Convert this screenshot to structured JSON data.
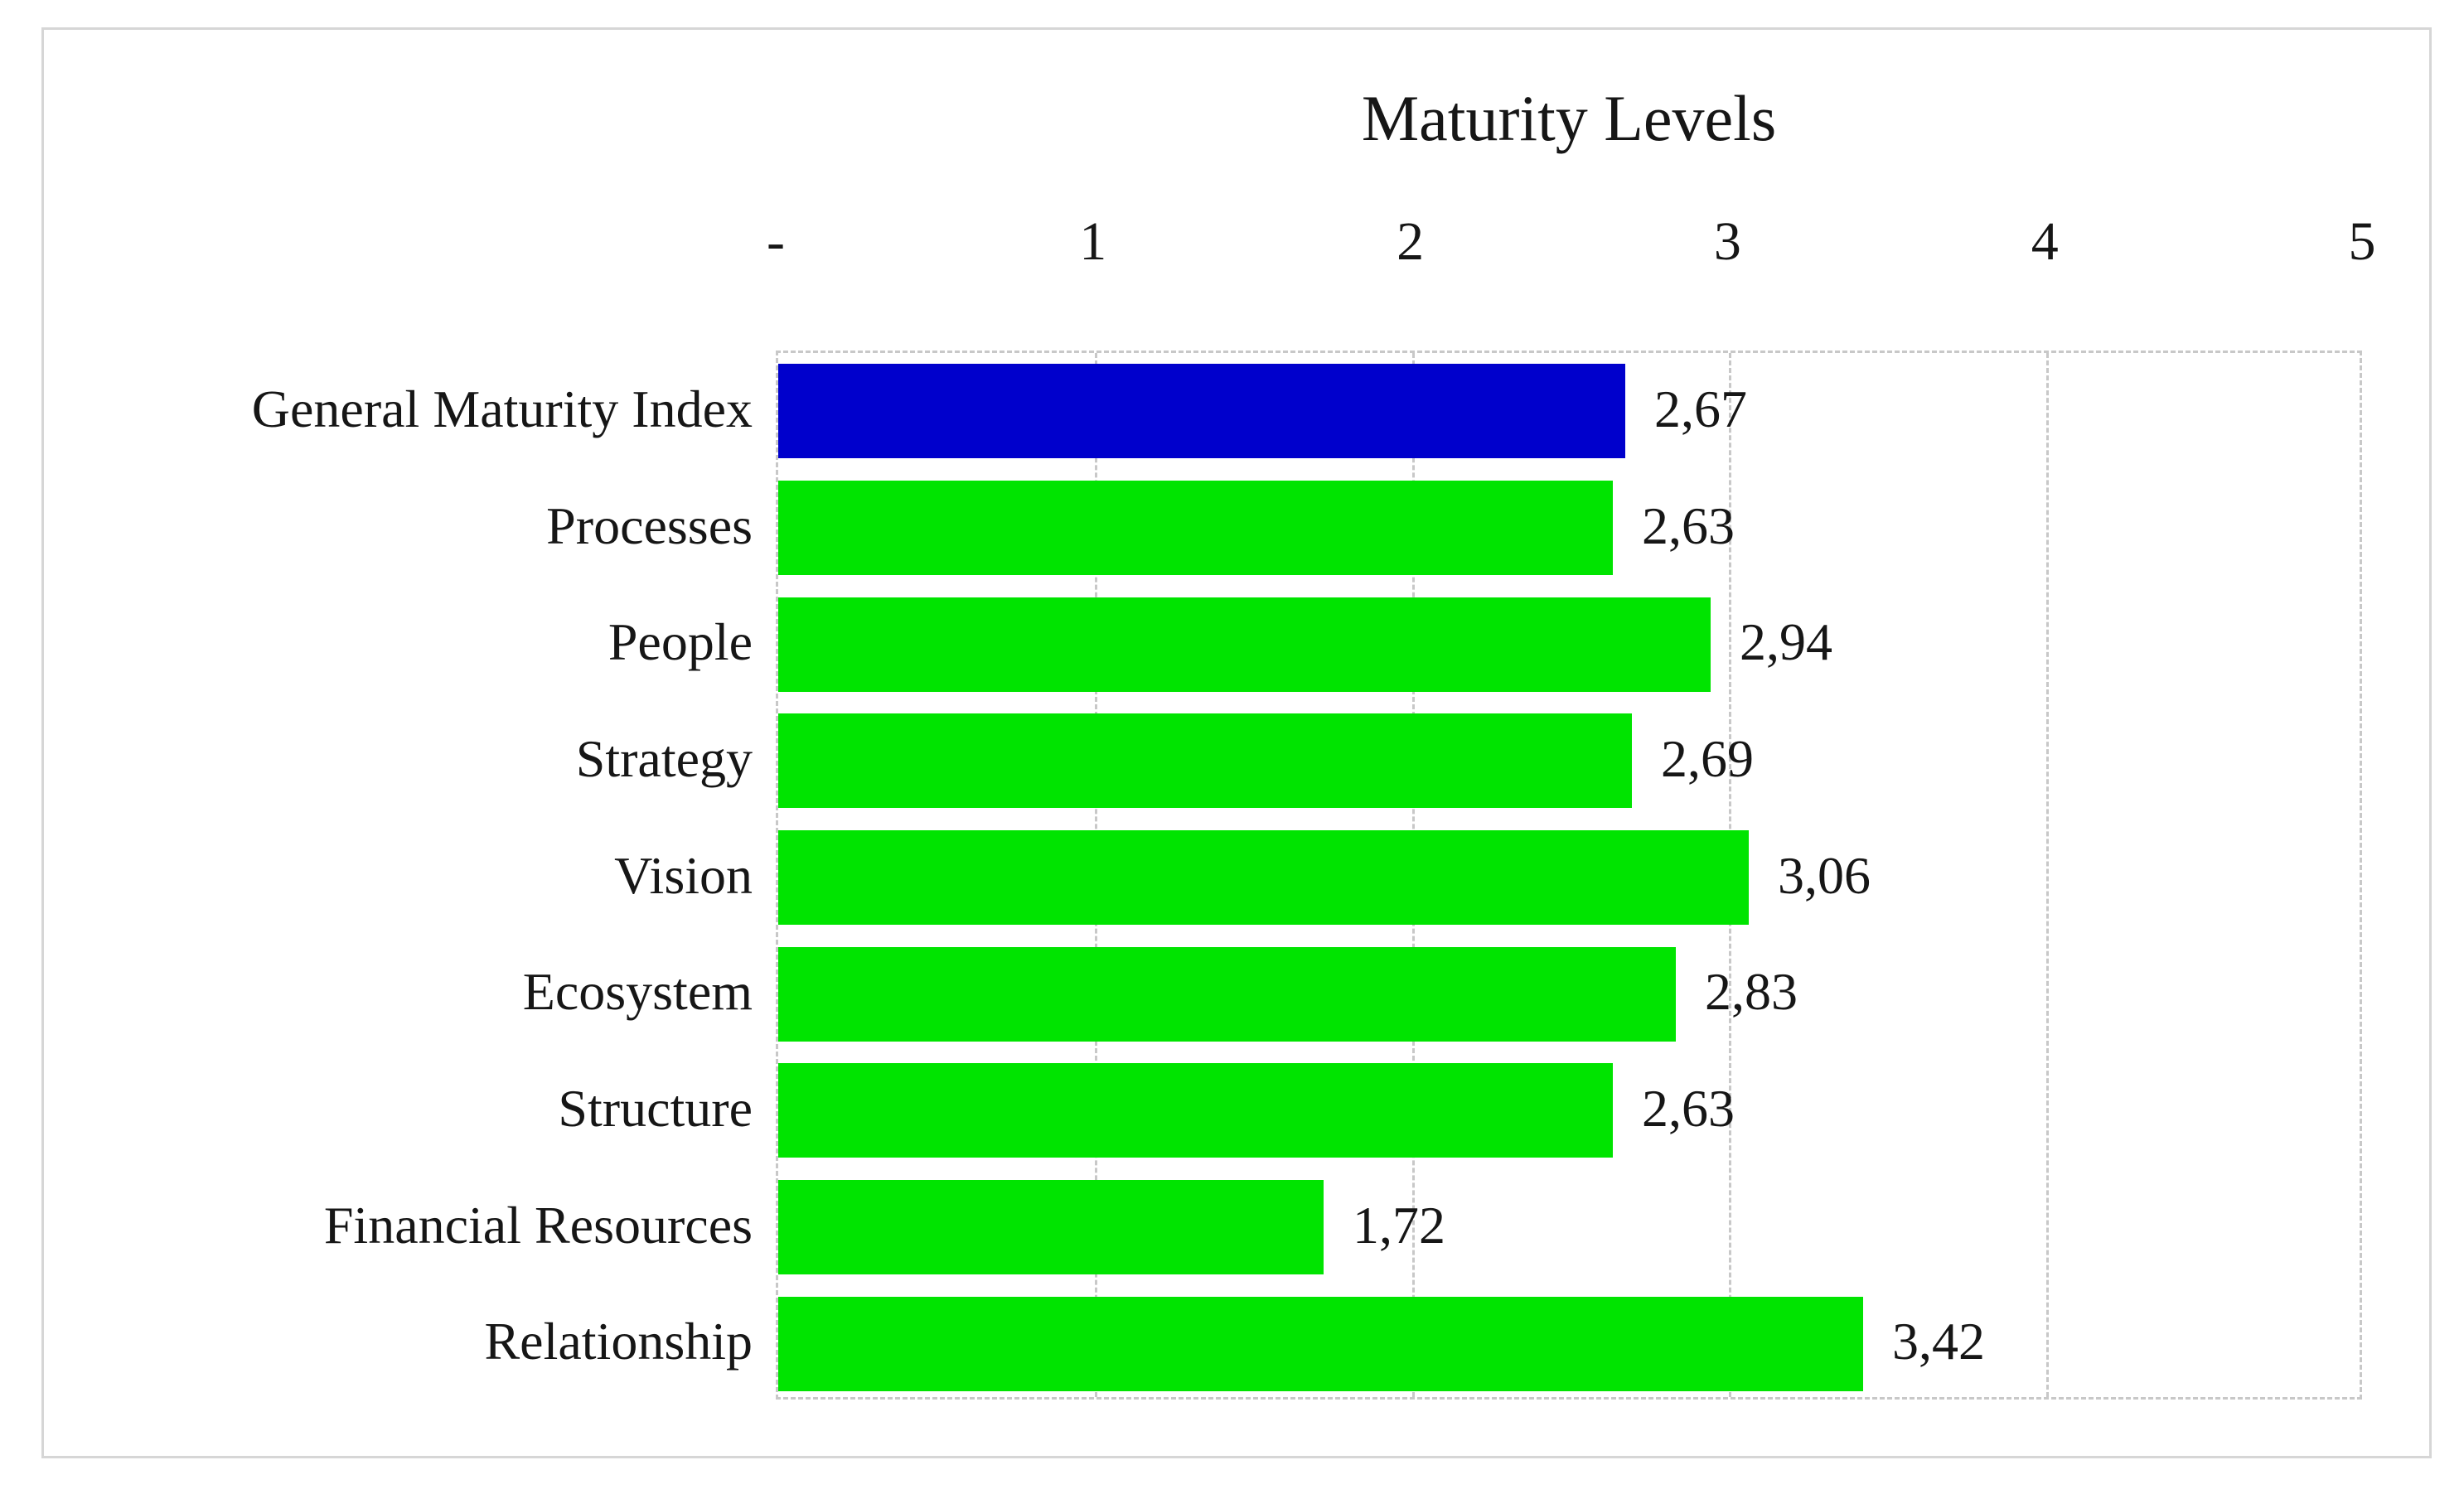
{
  "chart_data": {
    "type": "bar",
    "orientation": "horizontal",
    "title": "Maturity Levels",
    "categories": [
      "General Maturity Index",
      "Processes",
      "People",
      "Strategy",
      "Vision",
      "Ecosystem",
      "Structure",
      "Financial Resources",
      "Relationship"
    ],
    "values": [
      2.67,
      2.63,
      2.94,
      2.69,
      3.06,
      2.83,
      2.63,
      1.72,
      3.42
    ],
    "value_labels": [
      "2,67",
      "2,63",
      "2,94",
      "2,69",
      "3,06",
      "2,83",
      "2,63",
      "1,72",
      "3,42"
    ],
    "bar_colors": [
      "#0000CC",
      "#00E400",
      "#00E400",
      "#00E400",
      "#00E400",
      "#00E400",
      "#00E400",
      "#00E400",
      "#00E400"
    ],
    "highlight_color": "#0000CC",
    "series_color": "#00E400",
    "xlabel": "",
    "ylabel": "",
    "xlim": [
      0,
      5
    ],
    "x_ticks": [
      "-",
      "1",
      "2",
      "3",
      "4",
      "5"
    ],
    "x_tick_values": [
      0,
      1,
      2,
      3,
      4,
      5
    ],
    "grid": "vertical-dashed",
    "legend_position": "none",
    "frame_color": "#d6d6d6",
    "gridline_color": "#c8c8c8",
    "text_color": "#161616",
    "decimal_separator": ","
  }
}
